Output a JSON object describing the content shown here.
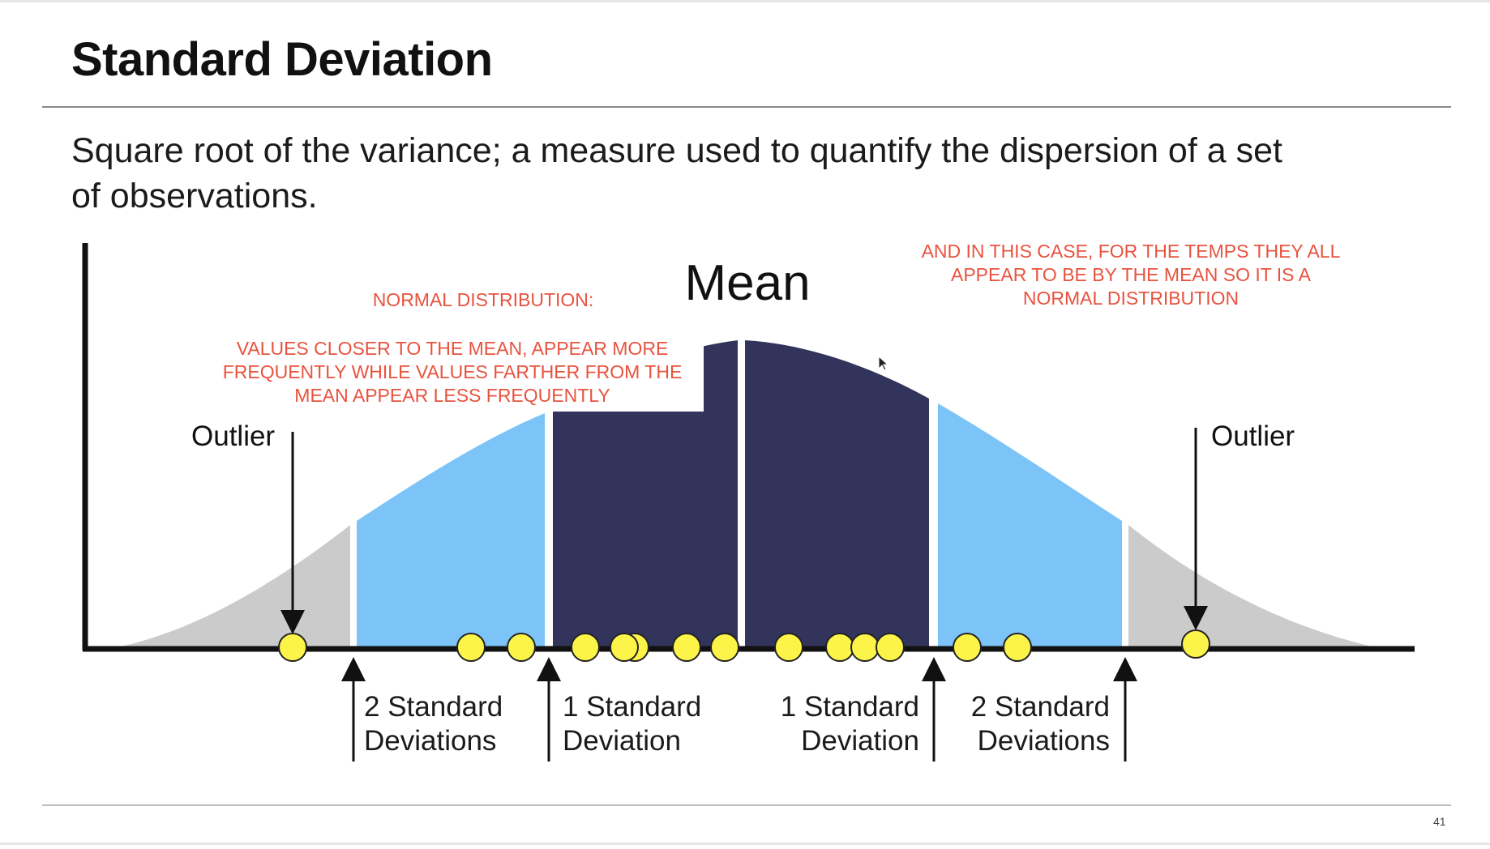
{
  "slide": {
    "title": "Standard Deviation",
    "subtitle": "Square root of the variance; a measure used to quantify the dispersion of a set of observations.",
    "page_number": "41"
  },
  "diagram": {
    "mean_label": "Mean",
    "outlier_left_label": "Outlier",
    "outlier_right_label": "Outlier",
    "sd_labels": {
      "left_2": [
        "2 Standard",
        "Deviations"
      ],
      "left_1": [
        "1 Standard",
        "Deviation"
      ],
      "right_1": [
        "1 Standard",
        "Deviation"
      ],
      "right_2": [
        "2 Standard",
        "Deviations"
      ]
    },
    "colors": {
      "outer_tail": "#cbcbcb",
      "two_sd": "#7cc4f8",
      "one_sd": "#33345c",
      "point": "#fdf44a",
      "axis": "#111111"
    }
  },
  "annotations": {
    "normal_heading": "NORMAL DISTRIBUTION:",
    "normal_explanation": [
      "VALUES CLOSER TO THE MEAN, APPEAR MORE",
      "FREQUENTLY WHILE VALUES FARTHER FROM THE",
      "MEAN APPEAR LESS FREQUENTLY"
    ],
    "temps_note": [
      "AND IN THIS CASE, FOR THE TEMPS THEY ALL",
      "APPEAR TO BE BY THE MEAN SO IT IS A",
      "NORMAL DISTRIBUTION"
    ],
    "color": "#e8533f"
  }
}
